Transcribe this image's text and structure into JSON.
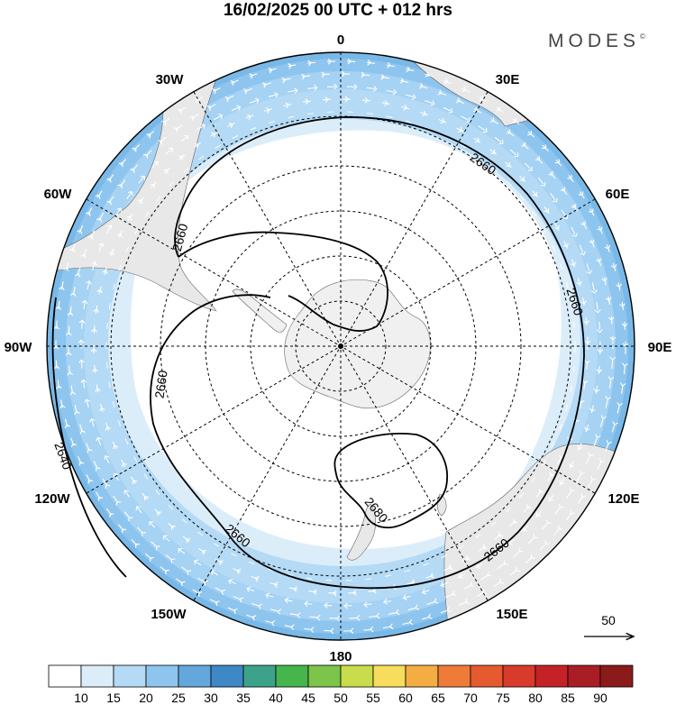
{
  "header": {
    "title": "16/02/2025  00 UTC  + 012 hrs",
    "brand": "MODES",
    "brand_mark": "©"
  },
  "map": {
    "projection": "south-polar-stereographic",
    "meridian_labels": {
      "lon_0": "0",
      "lon_30e": "30E",
      "lon_60e": "60E",
      "lon_90e": "90E",
      "lon_120e": "120E",
      "lon_150e": "150E",
      "lon_180": "180",
      "lon_150w": "150W",
      "lon_120w": "120W",
      "lon_90w": "90W",
      "lon_60w": "60W",
      "lon_30w": "30W"
    },
    "contour_labels": {
      "c1": "2660",
      "c2": "2660",
      "c3": "2660",
      "c4": "2660",
      "c5": "2660",
      "c6": "2660",
      "c7": "2640",
      "c8": "2680"
    },
    "reference_vector": "50",
    "colors": {
      "land": "#f0f0f0",
      "ocean_weak": "#ffffff",
      "band_15": "#dcedfa",
      "band_20": "#b4daf5",
      "band_25": "#8ec5ee",
      "wind_arrow": "#ffffff",
      "contour": "#000000"
    }
  },
  "colorbar": {
    "colors": [
      "#ffffff",
      "#dcedfa",
      "#b4daf5",
      "#8ec5ee",
      "#63a7dc",
      "#3f88c6",
      "#3da28a",
      "#45b54c",
      "#7cc44a",
      "#c9dc4b",
      "#f6dd5b",
      "#f4ad43",
      "#ee7c38",
      "#e55a2f",
      "#d83a2b",
      "#c52227",
      "#a91e24",
      "#8b1a1a"
    ],
    "ticks": [
      "10",
      "15",
      "20",
      "25",
      "30",
      "35",
      "40",
      "45",
      "50",
      "55",
      "60",
      "65",
      "70",
      "75",
      "80",
      "85",
      "90"
    ]
  }
}
